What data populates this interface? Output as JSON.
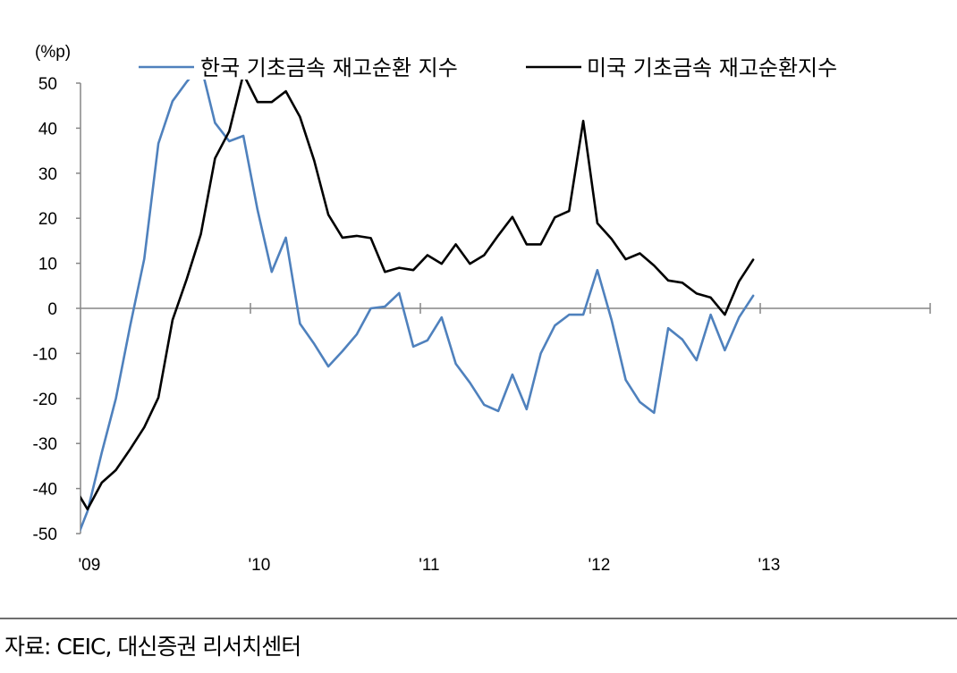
{
  "chart_data": {
    "type": "line",
    "ylabel": "(%p)",
    "ylim": [
      -50,
      50
    ],
    "xlim": [
      "2009-01",
      "2013-12"
    ],
    "y_ticks": [
      "50",
      "40",
      "30",
      "20",
      "10",
      "0",
      "-10",
      "-20",
      "-30",
      "-40",
      "-50"
    ],
    "x_ticks": [
      "'09",
      "'10",
      "'11",
      "'12",
      "'13"
    ],
    "grid": false,
    "legend_position": "top",
    "x": [
      "2008-12",
      "2009-01",
      "2009-02",
      "2009-03",
      "2009-04",
      "2009-05",
      "2009-06",
      "2009-07",
      "2009-08",
      "2009-09",
      "2009-10",
      "2009-11",
      "2009-12",
      "2010-01",
      "2010-02",
      "2010-03",
      "2010-04",
      "2010-05",
      "2010-06",
      "2010-07",
      "2010-08",
      "2010-09",
      "2010-10",
      "2010-11",
      "2010-12",
      "2011-01",
      "2011-02",
      "2011-03",
      "2011-04",
      "2011-05",
      "2011-06",
      "2011-07",
      "2011-08",
      "2011-09",
      "2011-10",
      "2011-11",
      "2011-12",
      "2012-01",
      "2012-02",
      "2012-03",
      "2012-04",
      "2012-05",
      "2012-06",
      "2012-07",
      "2012-08",
      "2012-09",
      "2012-10",
      "2012-11",
      "2012-12"
    ],
    "series": [
      {
        "name": "한국 기초금속 재고순환 지수",
        "color": "#4F81BD",
        "values": [
          -53,
          -45,
          -32,
          -20,
          -4,
          11,
          36.6,
          46,
          50.3,
          54,
          41.2,
          37.1,
          38.3,
          21.9,
          8.1,
          15.7,
          -3.4,
          -7.9,
          -12.9,
          -9.5,
          -5.8,
          0,
          0.4,
          3.4,
          -8.5,
          -7.1,
          -2,
          -12.3,
          -16.5,
          -21.4,
          -22.8,
          -14.7,
          -22.4,
          -10,
          -3.8,
          -1.4,
          -1.4,
          8.5,
          -2.6,
          -15.9,
          -20.8,
          -23.2,
          -4.4,
          -6.9,
          -11.5,
          -1.4,
          -9.3,
          -2,
          2.8
        ]
      },
      {
        "name": "미국 기초금속 재고순환지수",
        "color": "#000000",
        "values": [
          -39.4,
          -44.6,
          -38.7,
          -35.9,
          -31.3,
          -26.4,
          -19.8,
          -2.6,
          6.5,
          16.5,
          33.3,
          39.3,
          52,
          45.8,
          45.8,
          48.2,
          42.5,
          32.8,
          20.8,
          15.7,
          16.1,
          15.6,
          8.1,
          9.0,
          8.5,
          11.8,
          9.9,
          14.2,
          9.9,
          11.8,
          16.2,
          20.3,
          14.2,
          14.2,
          20.2,
          21.6,
          41.6,
          18.9,
          15.4,
          10.9,
          12.2,
          9.5,
          6.2,
          5.7,
          3.3,
          2.4,
          -1.4,
          6.0,
          10.8
        ]
      }
    ]
  },
  "source": "자료: CEIC, 대신증권 리서치센터"
}
